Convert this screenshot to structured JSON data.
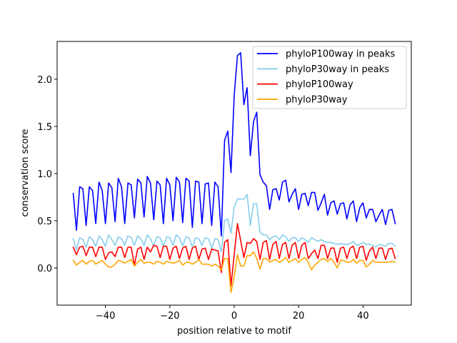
{
  "chart_data": {
    "type": "line",
    "title": "",
    "xlabel": "position relative to motif",
    "ylabel": "conservation score",
    "xlim": [
      -55,
      55
    ],
    "ylim": [
      -0.394,
      2.4
    ],
    "xticks": [
      -40,
      -20,
      0,
      20,
      40
    ],
    "xtick_labels": [
      "−40",
      "−20",
      "0",
      "20",
      "40"
    ],
    "yticks": [
      0.0,
      0.5,
      1.0,
      1.5,
      2.0
    ],
    "ytick_labels": [
      "0.0",
      "0.5",
      "1.0",
      "1.5",
      "2.0"
    ],
    "grid": false,
    "legend_position": "top-right",
    "x": [
      -50,
      -49,
      -48,
      -47,
      -46,
      -45,
      -44,
      -43,
      -42,
      -41,
      -40,
      -39,
      -38,
      -37,
      -36,
      -35,
      -34,
      -33,
      -32,
      -31,
      -30,
      -29,
      -28,
      -27,
      -26,
      -25,
      -24,
      -23,
      -22,
      -21,
      -20,
      -19,
      -18,
      -17,
      -16,
      -15,
      -14,
      -13,
      -12,
      -11,
      -10,
      -9,
      -8,
      -7,
      -6,
      -5,
      -4,
      -3,
      -2,
      -1,
      0,
      1,
      2,
      3,
      4,
      5,
      6,
      7,
      8,
      9,
      10,
      11,
      12,
      13,
      14,
      15,
      16,
      17,
      18,
      19,
      20,
      21,
      22,
      23,
      24,
      25,
      26,
      27,
      28,
      29,
      30,
      31,
      32,
      33,
      34,
      35,
      36,
      37,
      38,
      39,
      40,
      41,
      42,
      43,
      44,
      45,
      46,
      47,
      48,
      49,
      50
    ],
    "series": [
      {
        "name": "phyloP100way in peaks",
        "color": "#0000ff",
        "values": [
          0.79,
          0.4,
          0.86,
          0.84,
          0.45,
          0.86,
          0.82,
          0.47,
          0.91,
          0.82,
          0.47,
          0.9,
          0.85,
          0.49,
          0.95,
          0.86,
          0.47,
          0.9,
          0.88,
          0.53,
          0.94,
          0.9,
          0.54,
          0.97,
          0.9,
          0.51,
          0.92,
          0.88,
          0.47,
          0.95,
          0.88,
          0.5,
          0.96,
          0.91,
          0.48,
          0.95,
          0.92,
          0.43,
          0.92,
          0.91,
          0.47,
          0.89,
          0.9,
          0.45,
          0.91,
          0.86,
          0.34,
          1.35,
          1.45,
          1.01,
          1.83,
          2.25,
          2.28,
          1.73,
          1.91,
          1.19,
          1.55,
          1.65,
          0.99,
          0.91,
          0.87,
          0.62,
          0.83,
          0.84,
          0.72,
          0.91,
          0.93,
          0.7,
          0.78,
          0.84,
          0.62,
          0.78,
          0.79,
          0.66,
          0.8,
          0.8,
          0.61,
          0.69,
          0.78,
          0.56,
          0.69,
          0.71,
          0.57,
          0.68,
          0.69,
          0.52,
          0.67,
          0.71,
          0.49,
          0.64,
          0.69,
          0.53,
          0.62,
          0.62,
          0.49,
          0.56,
          0.62,
          0.46,
          0.61,
          0.62,
          0.47
        ]
      },
      {
        "name": "phyloP30way in peaks",
        "color": "#87ceeb",
        "values": [
          0.31,
          0.19,
          0.32,
          0.3,
          0.22,
          0.33,
          0.3,
          0.23,
          0.34,
          0.3,
          0.23,
          0.35,
          0.3,
          0.24,
          0.33,
          0.31,
          0.24,
          0.34,
          0.32,
          0.24,
          0.34,
          0.31,
          0.24,
          0.35,
          0.31,
          0.23,
          0.33,
          0.32,
          0.23,
          0.33,
          0.32,
          0.24,
          0.35,
          0.32,
          0.23,
          0.33,
          0.32,
          0.22,
          0.32,
          0.31,
          0.24,
          0.32,
          0.31,
          0.21,
          0.31,
          0.3,
          0.17,
          0.5,
          0.52,
          0.37,
          0.64,
          0.73,
          0.73,
          0.73,
          0.78,
          0.45,
          0.68,
          0.68,
          0.38,
          0.35,
          0.35,
          0.3,
          0.33,
          0.34,
          0.3,
          0.35,
          0.33,
          0.28,
          0.32,
          0.32,
          0.28,
          0.32,
          0.3,
          0.27,
          0.32,
          0.3,
          0.28,
          0.3,
          0.28,
          0.27,
          0.27,
          0.26,
          0.25,
          0.26,
          0.25,
          0.25,
          0.26,
          0.28,
          0.24,
          0.25,
          0.27,
          0.25,
          0.25,
          0.24,
          0.22,
          0.25,
          0.24,
          0.23,
          0.26,
          0.26,
          0.23
        ]
      },
      {
        "name": "phyloP100way",
        "color": "#ff0000",
        "values": [
          0.22,
          0.14,
          0.22,
          0.23,
          0.13,
          0.22,
          0.22,
          0.12,
          0.22,
          0.22,
          0.09,
          0.16,
          0.17,
          0.12,
          0.22,
          0.22,
          0.11,
          0.22,
          0.22,
          0.03,
          0.2,
          0.22,
          0.09,
          0.22,
          0.17,
          0.24,
          0.23,
          0.11,
          0.23,
          0.23,
          0.09,
          0.21,
          0.23,
          0.1,
          0.21,
          0.23,
          0.09,
          0.21,
          0.23,
          0.09,
          0.2,
          0.21,
          0.09,
          0.2,
          0.19,
          0.18,
          -0.05,
          0.27,
          0.3,
          -0.19,
          0.14,
          0.47,
          0.29,
          0.11,
          0.27,
          0.26,
          0.31,
          0.28,
          0.09,
          0.27,
          0.29,
          0.09,
          0.25,
          0.28,
          0.1,
          0.25,
          0.27,
          0.1,
          0.24,
          0.27,
          0.1,
          0.24,
          0.27,
          0.1,
          0.15,
          0.19,
          0.1,
          0.24,
          0.24,
          0.1,
          0.21,
          0.21,
          0.06,
          0.21,
          0.22,
          0.1,
          0.21,
          0.23,
          0.1,
          0.22,
          0.23,
          0.08,
          0.18,
          0.22,
          0.1,
          0.21,
          0.21,
          0.09,
          0.2,
          0.21,
          0.1
        ]
      },
      {
        "name": "phyloP30way",
        "color": "#ffa500",
        "values": [
          0.08,
          0.03,
          0.06,
          0.08,
          0.04,
          0.07,
          0.08,
          0.04,
          0.06,
          0.08,
          0.04,
          0.01,
          0.01,
          0.04,
          0.08,
          0.07,
          0.05,
          0.07,
          0.09,
          0.02,
          0.06,
          0.09,
          0.05,
          0.06,
          0.06,
          0.04,
          0.07,
          0.06,
          0.04,
          0.07,
          0.06,
          0.05,
          0.06,
          0.08,
          0.03,
          0.06,
          0.06,
          0.04,
          0.06,
          0.09,
          0.04,
          0.04,
          0.04,
          0.02,
          0.04,
          0.02,
          -0.02,
          0.1,
          0.1,
          -0.26,
          -0.09,
          0.14,
          0.02,
          0.02,
          0.13,
          0.13,
          0.17,
          0.1,
          -0.01,
          0.1,
          0.1,
          0.06,
          0.08,
          0.09,
          0.06,
          0.08,
          0.11,
          0.06,
          0.08,
          0.1,
          0.06,
          0.09,
          0.11,
          0.06,
          -0.02,
          0.03,
          0.06,
          0.09,
          0.1,
          0.07,
          0.1,
          0.06,
          0.0,
          0.08,
          0.08,
          0.06,
          0.06,
          0.09,
          0.05,
          0.08,
          0.08,
          0.01,
          0.04,
          0.08,
          0.06,
          0.06,
          0.06,
          0.06,
          0.06,
          0.07,
          0.06
        ]
      }
    ]
  }
}
